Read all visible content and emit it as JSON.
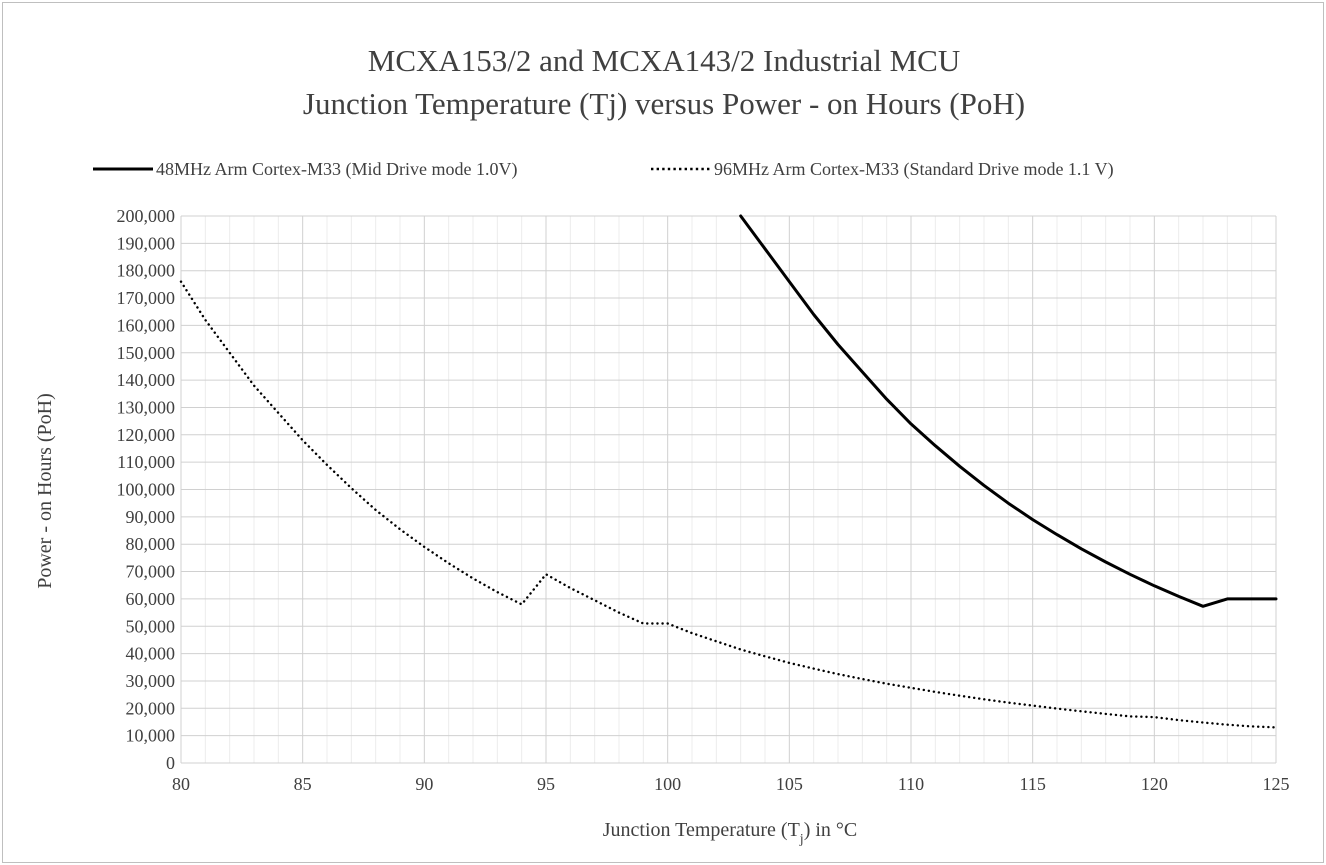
{
  "chart_data": {
    "type": "line",
    "title_line1": "MCXA153/2 and MCXA143/2 Industrial MCU",
    "title_line2": "Junction Temperature (Tj) versus Power   - on Hours (PoH)",
    "xlabel_prefix": "Junction Temperature (T",
    "xlabel_sub": "j",
    "xlabel_suffix": ") in °C",
    "ylabel": "Power - on Hours (PoH)",
    "xlim": [
      80,
      125
    ],
    "ylim": [
      0,
      200000
    ],
    "x_major_step": 5,
    "x_minor_step": 1,
    "y_major_step": 10000,
    "x_tick_labels": [
      "80",
      "85",
      "90",
      "95",
      "100",
      "105",
      "110",
      "115",
      "120",
      "125"
    ],
    "y_tick_labels": [
      "0",
      "10,000",
      "20,000",
      "30,000",
      "40,000",
      "50,000",
      "60,000",
      "70,000",
      "80,000",
      "90,000",
      "100,000",
      "110,000",
      "120,000",
      "130,000",
      "140,000",
      "150,000",
      "160,000",
      "170,000",
      "180,000",
      "190,000",
      "200,000"
    ],
    "grid": true,
    "legend_position": "top",
    "series": [
      {
        "name": "48MHz Arm Cortex-M33 (Mid Drive mode 1.0V)",
        "style": "solid",
        "color": "#000000",
        "x": [
          103,
          104,
          105,
          106,
          107,
          108,
          109,
          110,
          111,
          112,
          113,
          114,
          115,
          116,
          117,
          118,
          119,
          120,
          121,
          122,
          123,
          124,
          125
        ],
        "y": [
          200000,
          188000,
          176000,
          164000,
          153000,
          143000,
          133000,
          124000,
          116000,
          108500,
          101500,
          95000,
          89000,
          83500,
          78300,
          73500,
          69000,
          64800,
          60900,
          57300,
          60000,
          60000,
          60000
        ]
      },
      {
        "name": "96MHz Arm Cortex-M33 (Standard Drive mode 1.1 V)",
        "style": "dotted",
        "color": "#000000",
        "x": [
          80,
          81,
          82,
          83,
          84,
          85,
          86,
          87,
          88,
          89,
          90,
          91,
          92,
          93,
          94,
          95,
          96,
          97,
          98,
          99,
          100,
          101,
          102,
          103,
          104,
          105,
          106,
          107,
          108,
          109,
          110,
          111,
          112,
          113,
          114,
          115,
          116,
          117,
          118,
          119,
          120,
          121,
          122,
          123,
          124,
          125
        ],
        "y": [
          176000,
          162000,
          150000,
          138000,
          128000,
          118000,
          109000,
          100500,
          92500,
          85500,
          79000,
          73000,
          67500,
          62500,
          58000,
          69000,
          64000,
          59500,
          55000,
          51000,
          51000,
          47500,
          44500,
          41500,
          39000,
          36600,
          34500,
          32500,
          30700,
          29000,
          27500,
          26000,
          24600,
          23300,
          22100,
          21000,
          19900,
          18900,
          17950,
          17050,
          16800,
          15700,
          14800,
          14000,
          13400,
          13000
        ]
      }
    ]
  }
}
